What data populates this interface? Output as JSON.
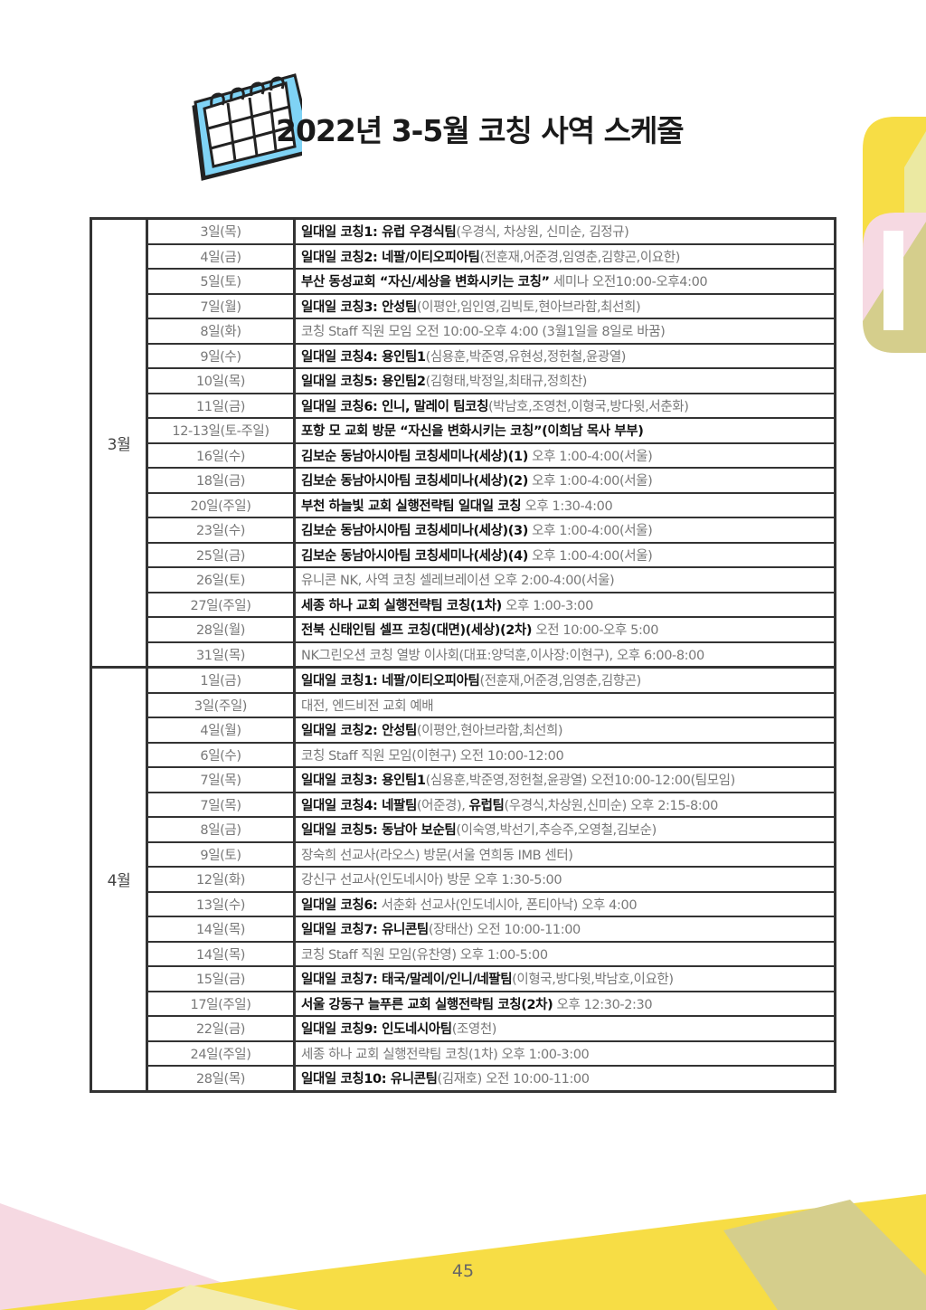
{
  "title": "2022년 3-5월 코칭 사역 스케줄",
  "page_number": "45",
  "colors": {
    "yellow": "#f7dd45",
    "pink": "#f6d9e2",
    "olive": "#d5ce8c",
    "calendar_blue": "#7fd3f5"
  },
  "icons": {
    "calendar": "calendar-icon"
  },
  "schedule": [
    {
      "month": "3월",
      "rows": [
        {
          "date": "3일(목)",
          "segments": [
            {
              "text": "일대일 코칭1: 유럽 우경식팀",
              "bold": true
            },
            {
              "text": "(우경식, 차상원, 신미순, 김정규)",
              "bold": false
            }
          ]
        },
        {
          "date": "4일(금)",
          "segments": [
            {
              "text": "일대일 코칭2: 네팔/이티오피아팀",
              "bold": true
            },
            {
              "text": "(전훈재,어준경,임영춘,김향곤,이요한)",
              "bold": false
            }
          ]
        },
        {
          "date": "5일(토)",
          "segments": [
            {
              "text": "부산 동성교회 “자신/세상을 변화시키는 코칭”",
              "bold": true
            },
            {
              "text": " 세미나 오전10:00-오후4:00",
              "bold": false
            }
          ]
        },
        {
          "date": "7일(월)",
          "segments": [
            {
              "text": "일대일 코칭3: 안성팀",
              "bold": true
            },
            {
              "text": "(이평안,임인영,김빅토,현아브라함,최선희)",
              "bold": false
            }
          ]
        },
        {
          "date": "8일(화)",
          "segments": [
            {
              "text": "코칭 Staff 직원 모임 오전 10:00-오후 4:00 (3월1일을 8일로 바꿈)",
              "bold": false
            }
          ]
        },
        {
          "date": "9일(수)",
          "segments": [
            {
              "text": "일대일 코칭4: 용인팀1",
              "bold": true
            },
            {
              "text": "(심용훈,박준영,유현성,정헌철,윤광열)",
              "bold": false
            }
          ]
        },
        {
          "date": "10일(목)",
          "segments": [
            {
              "text": "일대일 코칭5: 용인팀2",
              "bold": true
            },
            {
              "text": "(김형태,박정일,최태규,정희찬)",
              "bold": false
            }
          ]
        },
        {
          "date": "11일(금)",
          "segments": [
            {
              "text": "일대일 코칭6: 인니, 말레이 팀코칭",
              "bold": true
            },
            {
              "text": "(박남호,조영천,이형국,방다윗,서춘화)",
              "bold": false
            }
          ]
        },
        {
          "date": "12-13일(토-주일)",
          "segments": [
            {
              "text": "포항 모 교회 방문 “자신을 변화시키는 코칭”(이희남 목사 부부)",
              "bold": true
            }
          ]
        },
        {
          "date": "16일(수)",
          "segments": [
            {
              "text": "김보순 동남아시아팀 코칭세미나(세상)(1)",
              "bold": true
            },
            {
              "text": " 오후 1:00-4:00(서울)",
              "bold": false
            }
          ]
        },
        {
          "date": "18일(금)",
          "segments": [
            {
              "text": "김보순 동남아시아팀 코칭세미나(세상)(2)",
              "bold": true
            },
            {
              "text": " 오후 1:00-4:00(서울)",
              "bold": false
            }
          ]
        },
        {
          "date": "20일(주일)",
          "segments": [
            {
              "text": "부천 하늘빛 교회 실행전략팀 일대일 코칭",
              "bold": true
            },
            {
              "text": " 오후 1:30-4:00",
              "bold": false
            }
          ]
        },
        {
          "date": "23일(수)",
          "segments": [
            {
              "text": "김보순 동남아시아팀 코칭세미나(세상)(3)",
              "bold": true
            },
            {
              "text": " 오후 1:00-4:00(서울)",
              "bold": false
            }
          ]
        },
        {
          "date": "25일(금)",
          "segments": [
            {
              "text": "김보순 동남아시아팀 코칭세미나(세상)(4)",
              "bold": true
            },
            {
              "text": " 오후 1:00-4:00(서울)",
              "bold": false
            }
          ]
        },
        {
          "date": "26일(토)",
          "segments": [
            {
              "text": "유니콘 NK, 사역 코칭 셀레브레이션 오후 2:00-4:00(서울)",
              "bold": false
            }
          ]
        },
        {
          "date": "27일(주일)",
          "segments": [
            {
              "text": "세종 하나 교회 실행전략팀 코칭(1차)",
              "bold": true
            },
            {
              "text": " 오후 1:00-3:00",
              "bold": false
            }
          ]
        },
        {
          "date": "28일(월)",
          "segments": [
            {
              "text": "전북 신태인팀 셀프 코칭(대면)(세상)(2차)",
              "bold": true
            },
            {
              "text": " 오전 10:00-오후 5:00",
              "bold": false
            }
          ]
        },
        {
          "date": "31일(목)",
          "segments": [
            {
              "text": "NK그린오션 코칭 열방 이사회(대표:양덕훈,이사장:이현구), 오후 6:00-8:00",
              "bold": false
            }
          ]
        }
      ]
    },
    {
      "month": "4월",
      "rows": [
        {
          "date": "1일(금)",
          "segments": [
            {
              "text": "일대일 코칭1: 네팔/이티오피아팀",
              "bold": true
            },
            {
              "text": "(전훈재,어준경,임영춘,김향곤)",
              "bold": false
            }
          ]
        },
        {
          "date": "3일(주일)",
          "segments": [
            {
              "text": "대전, 엔드비전 교회 예배",
              "bold": false
            }
          ]
        },
        {
          "date": "4일(월)",
          "segments": [
            {
              "text": "일대일 코칭2: 안성팀",
              "bold": true
            },
            {
              "text": "(이평안,현아브라함,최선희)",
              "bold": false
            }
          ]
        },
        {
          "date": "6일(수)",
          "segments": [
            {
              "text": "코칭 Staff 직원 모임(이현구) 오전 10:00-12:00",
              "bold": false
            }
          ]
        },
        {
          "date": "7일(목)",
          "segments": [
            {
              "text": "일대일 코칭3: 용인팀1",
              "bold": true
            },
            {
              "text": "(심용훈,박준영,정헌철,윤광열) 오전10:00-12:00(팀모임)",
              "bold": false
            }
          ]
        },
        {
          "date": "7일(목)",
          "segments": [
            {
              "text": "일대일 코칭4: 네팔팀",
              "bold": true
            },
            {
              "text": "(어준경), ",
              "bold": false
            },
            {
              "text": "유럽팀",
              "bold": true
            },
            {
              "text": "(우경식,차상원,신미순) 오후 2:15-8:00",
              "bold": false
            }
          ]
        },
        {
          "date": "8일(금)",
          "segments": [
            {
              "text": "일대일 코칭5: 동남아 보순팀",
              "bold": true
            },
            {
              "text": "(이숙영,박선기,추승주,오영철,김보순)",
              "bold": false
            }
          ]
        },
        {
          "date": "9일(토)",
          "segments": [
            {
              "text": "장숙희 선교사(라오스) 방문(서울 연희동 IMB 센터)",
              "bold": false
            }
          ]
        },
        {
          "date": "12일(화)",
          "segments": [
            {
              "text": "강신구 선교사(인도네시아) 방문 오후 1:30-5:00",
              "bold": false
            }
          ]
        },
        {
          "date": "13일(수)",
          "segments": [
            {
              "text": "일대일 코칭6:",
              "bold": true
            },
            {
              "text": " 서춘화 선교사(인도네시아, 폰티아낙) 오후 4:00",
              "bold": false
            }
          ]
        },
        {
          "date": "14일(목)",
          "segments": [
            {
              "text": "일대일 코칭7: 유니콘팀",
              "bold": true
            },
            {
              "text": "(장태산) 오전 10:00-11:00",
              "bold": false
            }
          ]
        },
        {
          "date": "14일(목)",
          "segments": [
            {
              "text": "코칭 Staff 직원 모임(유찬영) 오후 1:00-5:00",
              "bold": false
            }
          ]
        },
        {
          "date": "15일(금)",
          "segments": [
            {
              "text": "일대일 코칭7: 태국/말레이/인니/네팔팀",
              "bold": true
            },
            {
              "text": "(이형국,방다윗,박남호,이요한)",
              "bold": false
            }
          ]
        },
        {
          "date": "17일(주일)",
          "segments": [
            {
              "text": "서울 강동구 늘푸른 교회 실행전략팀 코칭(2차)",
              "bold": true
            },
            {
              "text": " 오후 12:30-2:30",
              "bold": false
            }
          ]
        },
        {
          "date": "22일(금)",
          "segments": [
            {
              "text": "일대일 코칭9: 인도네시아팀",
              "bold": true
            },
            {
              "text": "(조영천)",
              "bold": false
            }
          ]
        },
        {
          "date": "24일(주일)",
          "segments": [
            {
              "text": "세종 하나 교회 실행전략팀 코칭(1차) 오후 1:00-3:00",
              "bold": false
            }
          ]
        },
        {
          "date": "28일(목)",
          "segments": [
            {
              "text": "일대일 코칭10: 유니콘팀",
              "bold": true
            },
            {
              "text": "(김재호) 오전 10:00-11:00",
              "bold": false
            }
          ]
        }
      ]
    }
  ]
}
